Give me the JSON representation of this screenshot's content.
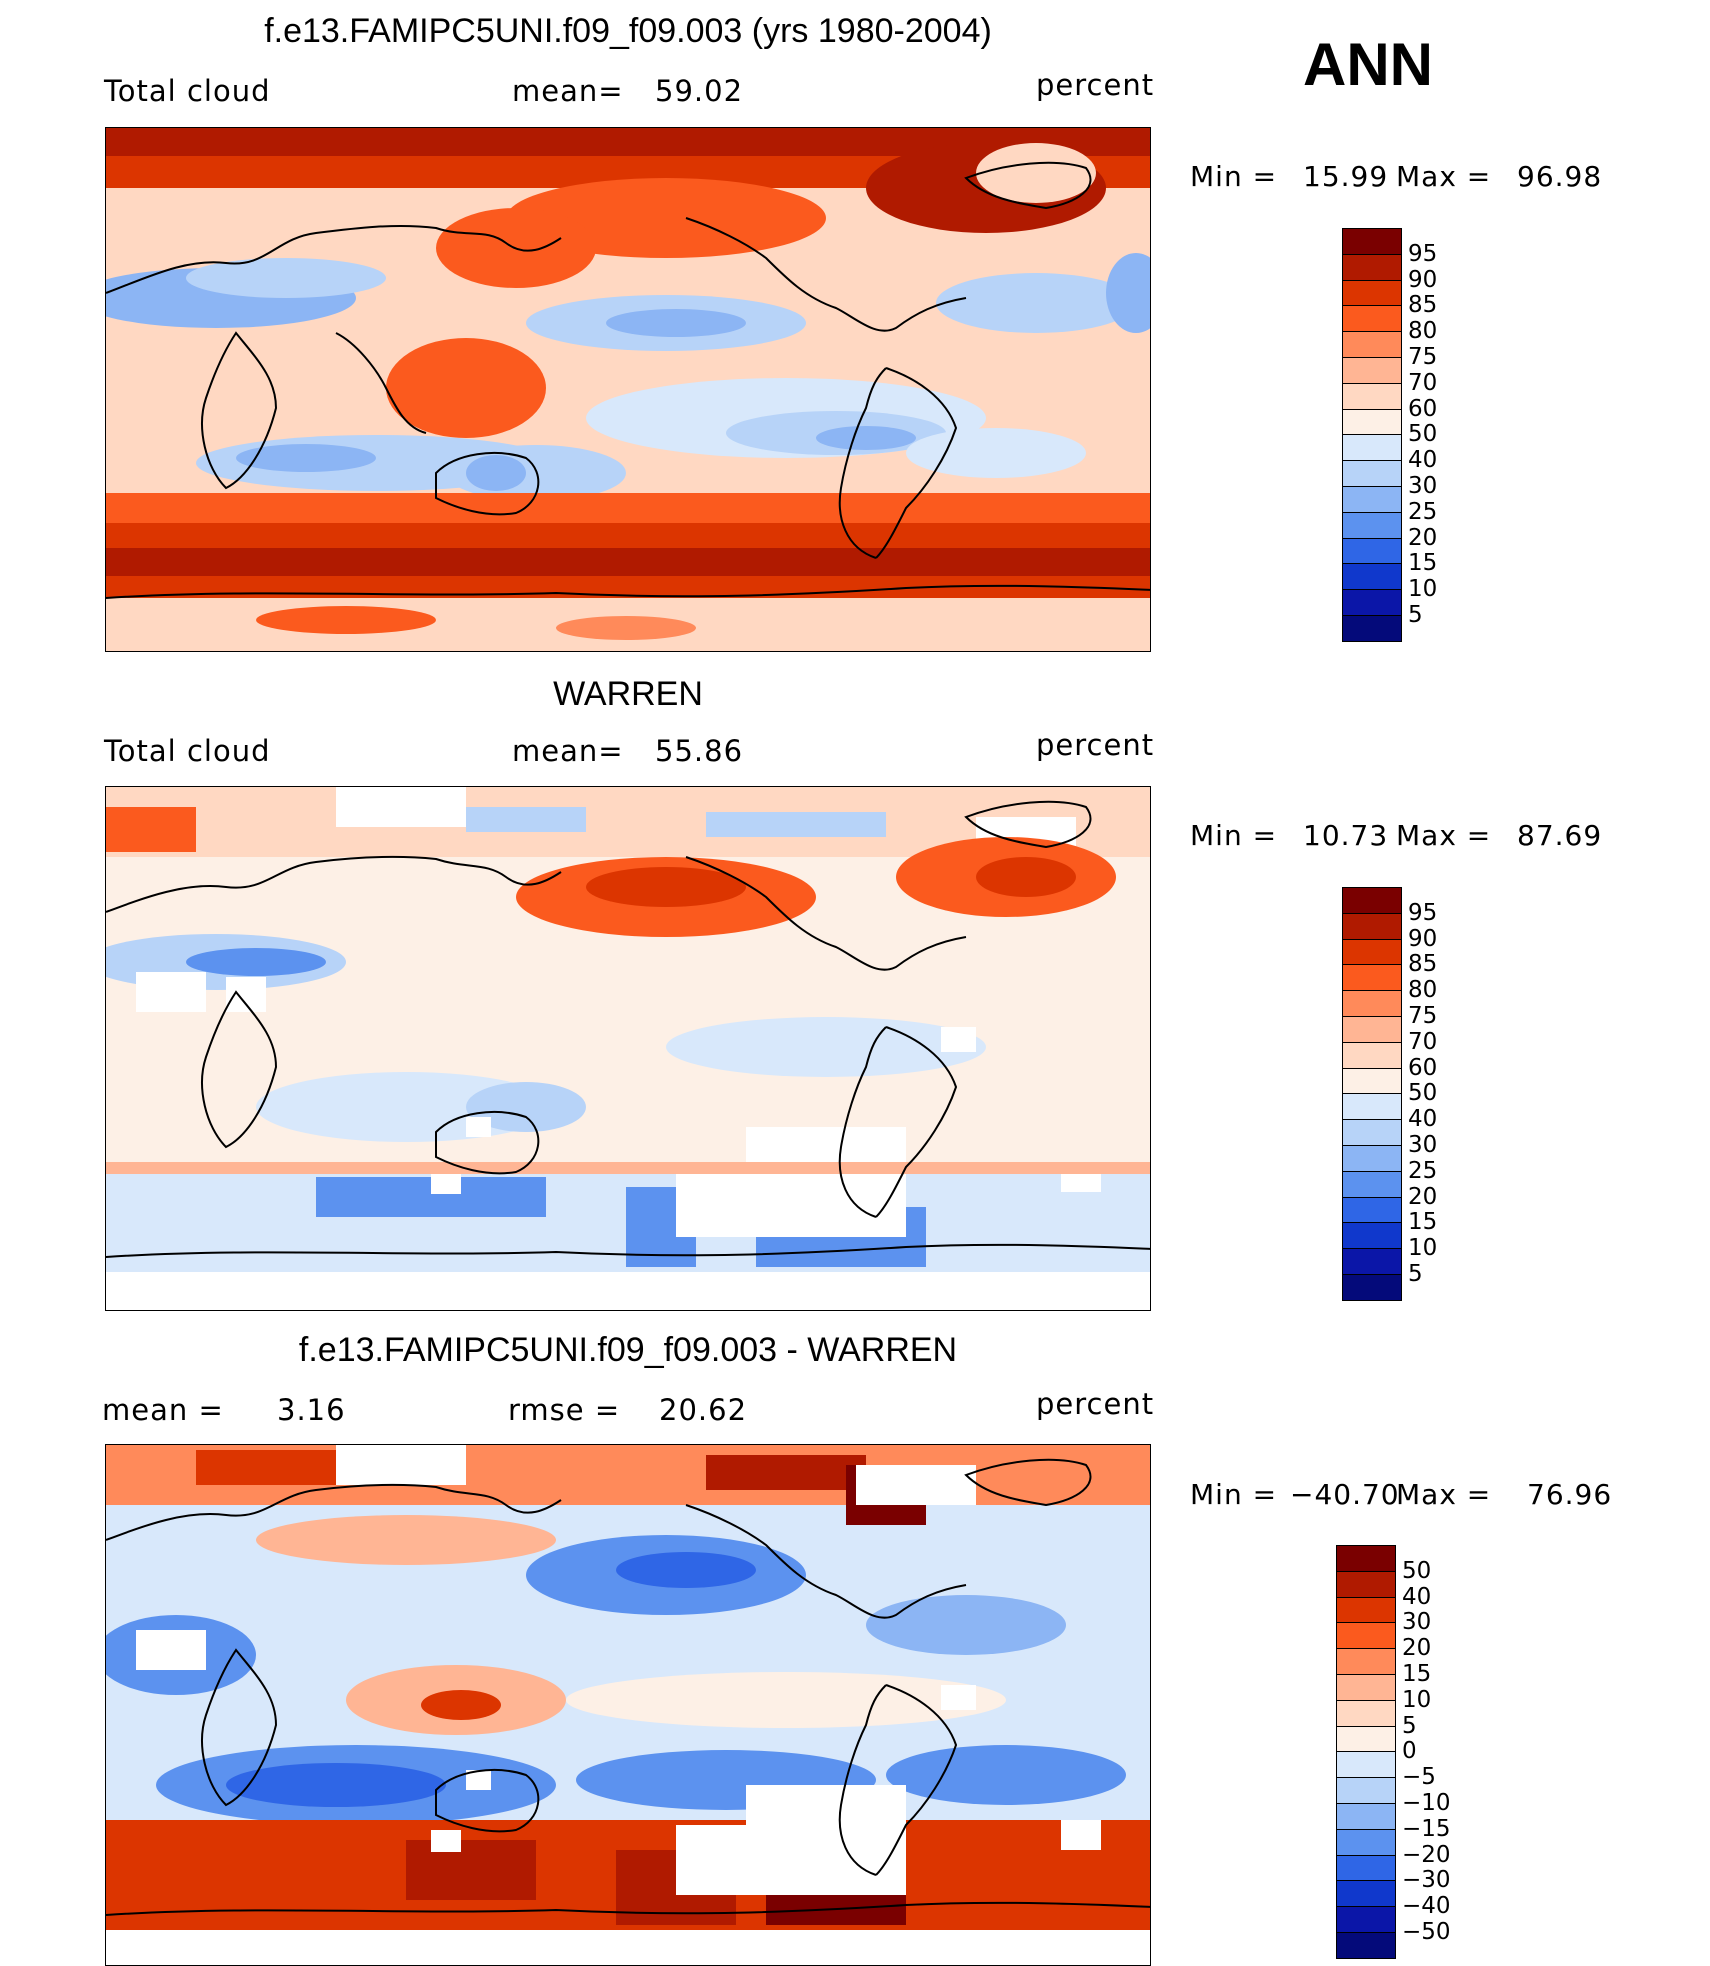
{
  "season": "ANN",
  "panels": [
    {
      "title": "f.e13.FAMIPC5UNI.f09_f09.003 (yrs 1980-2004)",
      "left_label": "Total cloud",
      "mid_label": "mean=",
      "mid_value": "59.02",
      "units": "percent",
      "min_label": "Min  =",
      "min_value": "15.99",
      "max_label": "Max  =",
      "max_value": "96.98",
      "colorbar_labels": [
        "95",
        "90",
        "85",
        "80",
        "75",
        "70",
        "60",
        "50",
        "40",
        "30",
        "25",
        "20",
        "15",
        "10",
        "5"
      ]
    },
    {
      "title": "WARREN",
      "left_label": "Total cloud",
      "mid_label": "mean=",
      "mid_value": "55.86",
      "units": "percent",
      "min_label": "Min  =",
      "min_value": "10.73",
      "max_label": "Max  =",
      "max_value": "87.69",
      "colorbar_labels": [
        "95",
        "90",
        "85",
        "80",
        "75",
        "70",
        "60",
        "50",
        "40",
        "30",
        "25",
        "20",
        "15",
        "10",
        "5"
      ]
    },
    {
      "title": "f.e13.FAMIPC5UNI.f09_f09.003 - WARREN",
      "left_label": "mean  =",
      "left_value": "3.16",
      "mid_label": "rmse  =",
      "mid_value": "20.62",
      "units": "percent",
      "min_label": "Min  =",
      "min_value": "−40.70",
      "max_label": "Max  =",
      "max_value": "76.96",
      "colorbar_labels": [
        "50",
        "40",
        "30",
        "20",
        "15",
        "10",
        "5",
        "0",
        "−5",
        "−10",
        "−15",
        "−20",
        "−30",
        "−40",
        "−50"
      ]
    }
  ],
  "colors": {
    "scale": [
      "#7a0000",
      "#b01a00",
      "#dc3500",
      "#fb5a1e",
      "#ff8a5a",
      "#ffb594",
      "#ffd8c2",
      "#fdf0e6",
      "#d8e8fb",
      "#b7d3f8",
      "#8cb5f4",
      "#5c92ef",
      "#2f66e6",
      "#1038cc",
      "#0b16a8",
      "#040a7a"
    ],
    "land": "#000000",
    "missing": "#ffffff"
  }
}
